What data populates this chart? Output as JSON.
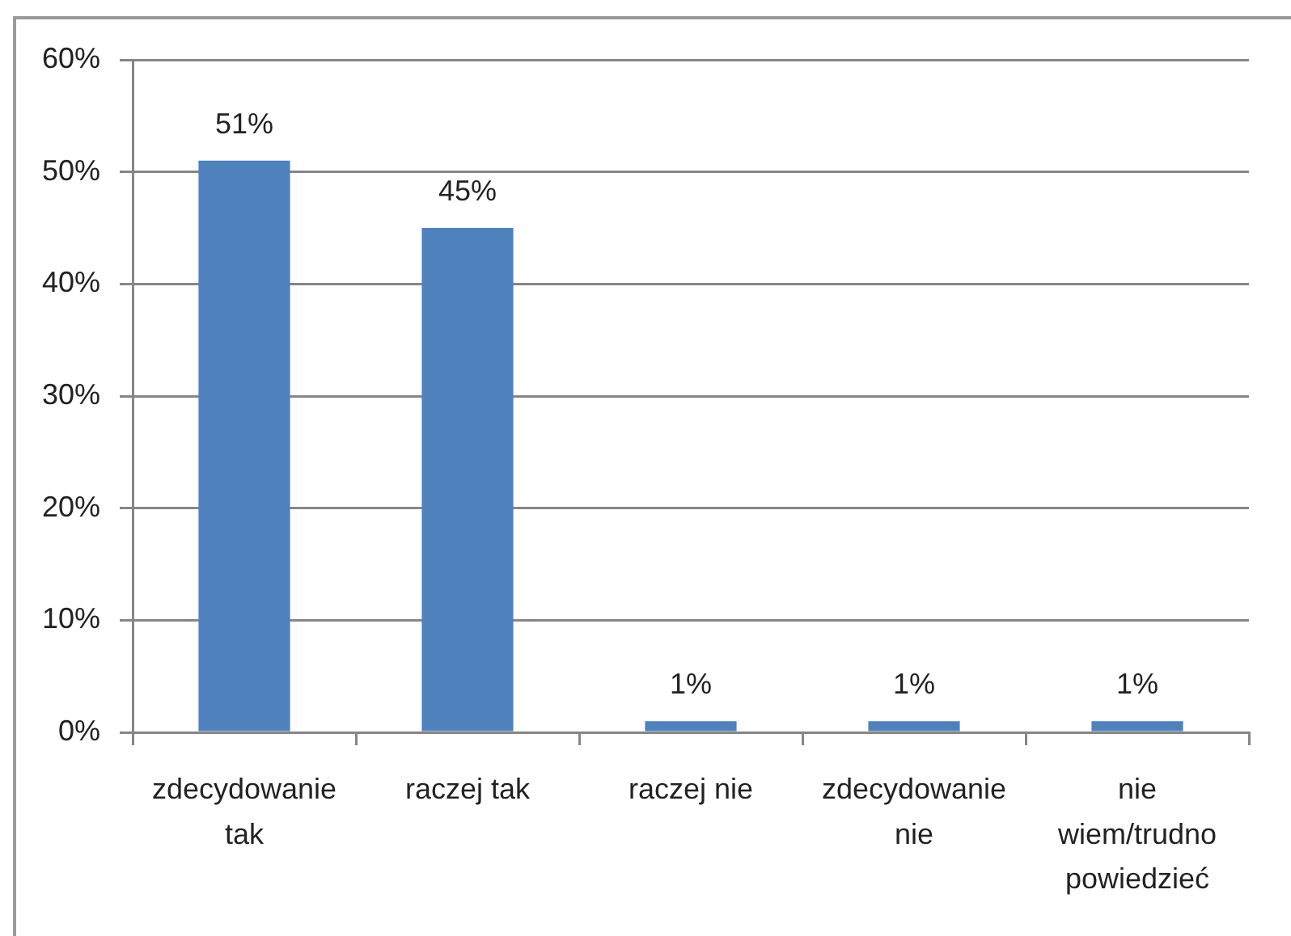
{
  "chart_data": {
    "type": "bar",
    "categories": [
      "zdecydowanie tak",
      "raczej tak",
      "raczej nie",
      "zdecydowanie nie",
      "nie wiem/trudno powiedzieć"
    ],
    "values": [
      51,
      45,
      1,
      1,
      1
    ],
    "value_labels": [
      "51%",
      "45%",
      "1%",
      "1%",
      "1%"
    ],
    "color": "#4f81bd",
    "ylim": [
      0,
      60
    ],
    "yticks": [
      {
        "value": 0,
        "label": "0%"
      },
      {
        "value": 10,
        "label": "10%"
      },
      {
        "value": 20,
        "label": "20%"
      },
      {
        "value": 30,
        "label": "30%"
      },
      {
        "value": 40,
        "label": "40%"
      },
      {
        "value": 50,
        "label": "50%"
      },
      {
        "value": 60,
        "label": "60%"
      }
    ],
    "grid": "y"
  }
}
